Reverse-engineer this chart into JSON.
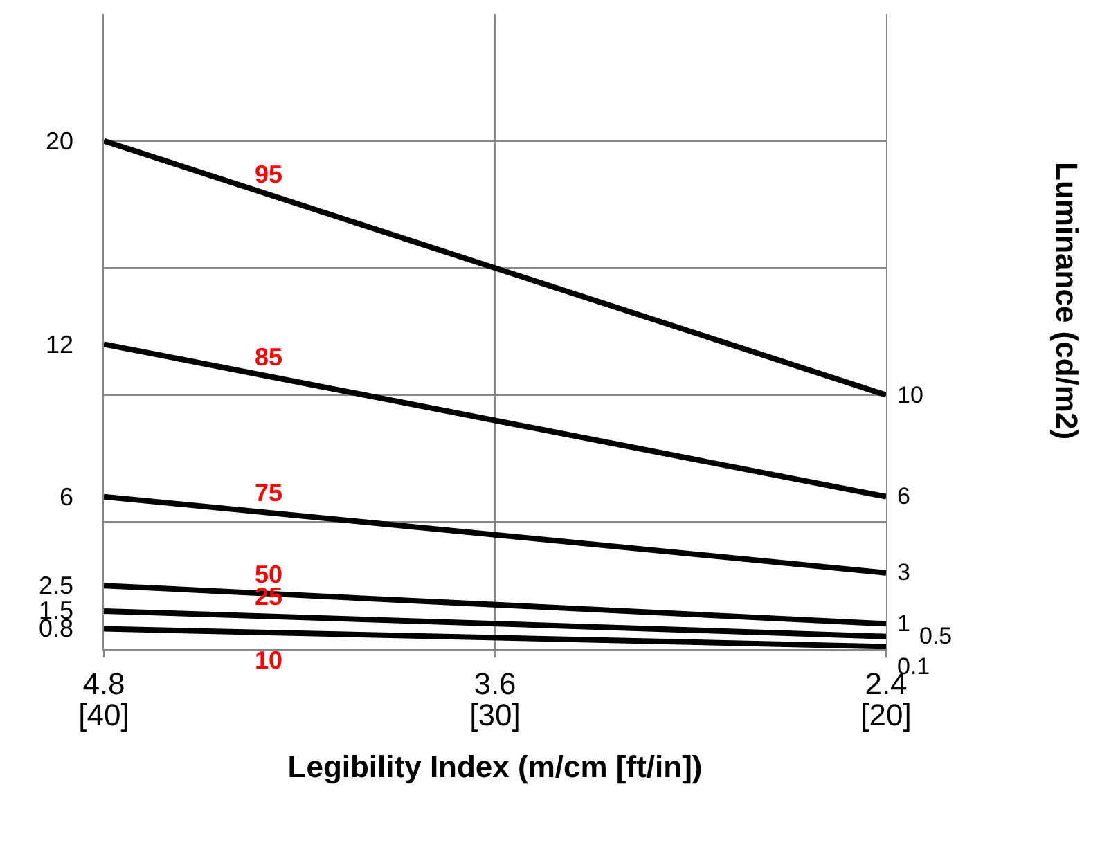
{
  "chart_data": {
    "type": "line",
    "xlabel": "Legibility Index (m/cm [ft/in])",
    "ylabel": "Luminance (cd/m2)",
    "x": [
      4.8,
      2.4
    ],
    "xlim": [
      4.8,
      2.4
    ],
    "xticks": [
      4.8,
      3.6,
      2.4
    ],
    "x2lim": [
      40,
      20
    ],
    "x2ticks": [
      {
        "value": 40,
        "label": "[40]"
      },
      {
        "value": 30,
        "label": "[30]"
      },
      {
        "value": 20,
        "label": "[20]"
      }
    ],
    "ylim": [
      0,
      25
    ],
    "yticks": [
      {
        "value": 0,
        "label": null
      },
      {
        "value": 5,
        "label": null
      },
      {
        "value": 10,
        "label": null
      },
      {
        "value": 15,
        "label": null
      },
      {
        "value": 20,
        "label": null
      }
    ],
    "tick_labels": "x",
    "grid": true,
    "legend": false,
    "marker": "none",
    "data_labels": true,
    "series": [
      {
        "name": "95",
        "color": "#000000",
        "values": [
          20,
          10
        ]
      },
      {
        "name": "85",
        "color": "#000000",
        "values": [
          12,
          6
        ]
      },
      {
        "name": "75",
        "color": "#000000",
        "values": [
          6,
          3
        ]
      },
      {
        "name": "50",
        "color": "#000000",
        "values": [
          2.5,
          1
        ]
      },
      {
        "name": "25",
        "color": "#000000",
        "values": [
          1.5,
          0.5
        ]
      },
      {
        "name": "10",
        "color": "#000000",
        "values": [
          0.8,
          0.1
        ]
      }
    ]
  }
}
